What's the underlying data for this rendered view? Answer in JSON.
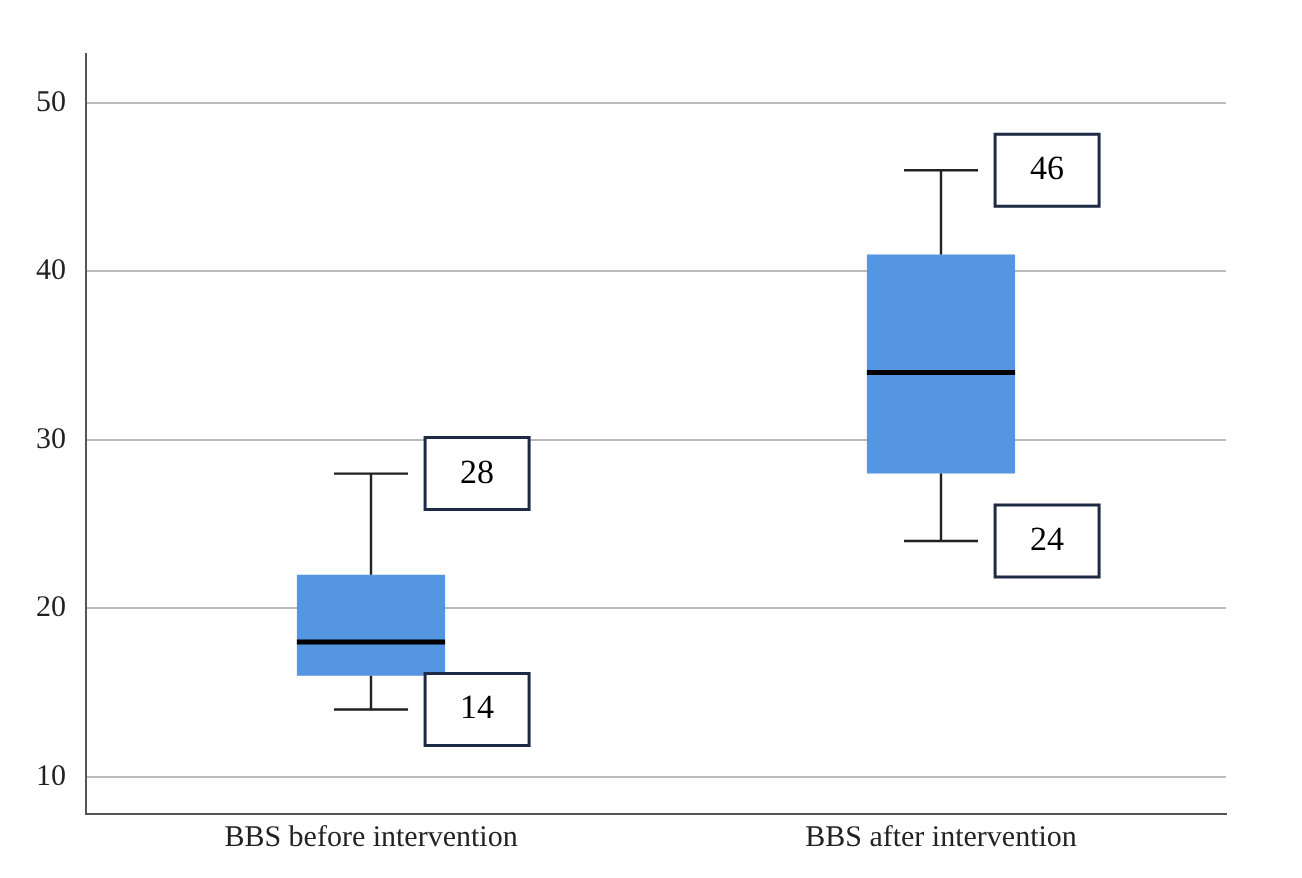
{
  "chart_data": {
    "type": "box",
    "categories": [
      "BBS before intervention",
      "BBS after intervention"
    ],
    "boxes": [
      {
        "low": 14,
        "q1": 16,
        "median": 18,
        "q3": 22,
        "high": 28
      },
      {
        "low": 24,
        "q1": 28,
        "median": 34,
        "q3": 41,
        "high": 46
      }
    ],
    "color": "#5596e3",
    "ylim": [
      7.8,
      52.9
    ],
    "yticks": [
      10,
      20,
      30,
      40,
      50
    ],
    "grid": "y",
    "annotations": [
      {
        "text": "28",
        "x": "BBS before intervention",
        "y": 28
      },
      {
        "text": "14",
        "x": "BBS before intervention",
        "y": 14
      },
      {
        "text": "46",
        "x": "BBS after intervention",
        "y": 46
      },
      {
        "text": "24",
        "x": "BBS after intervention",
        "y": 24
      }
    ]
  }
}
